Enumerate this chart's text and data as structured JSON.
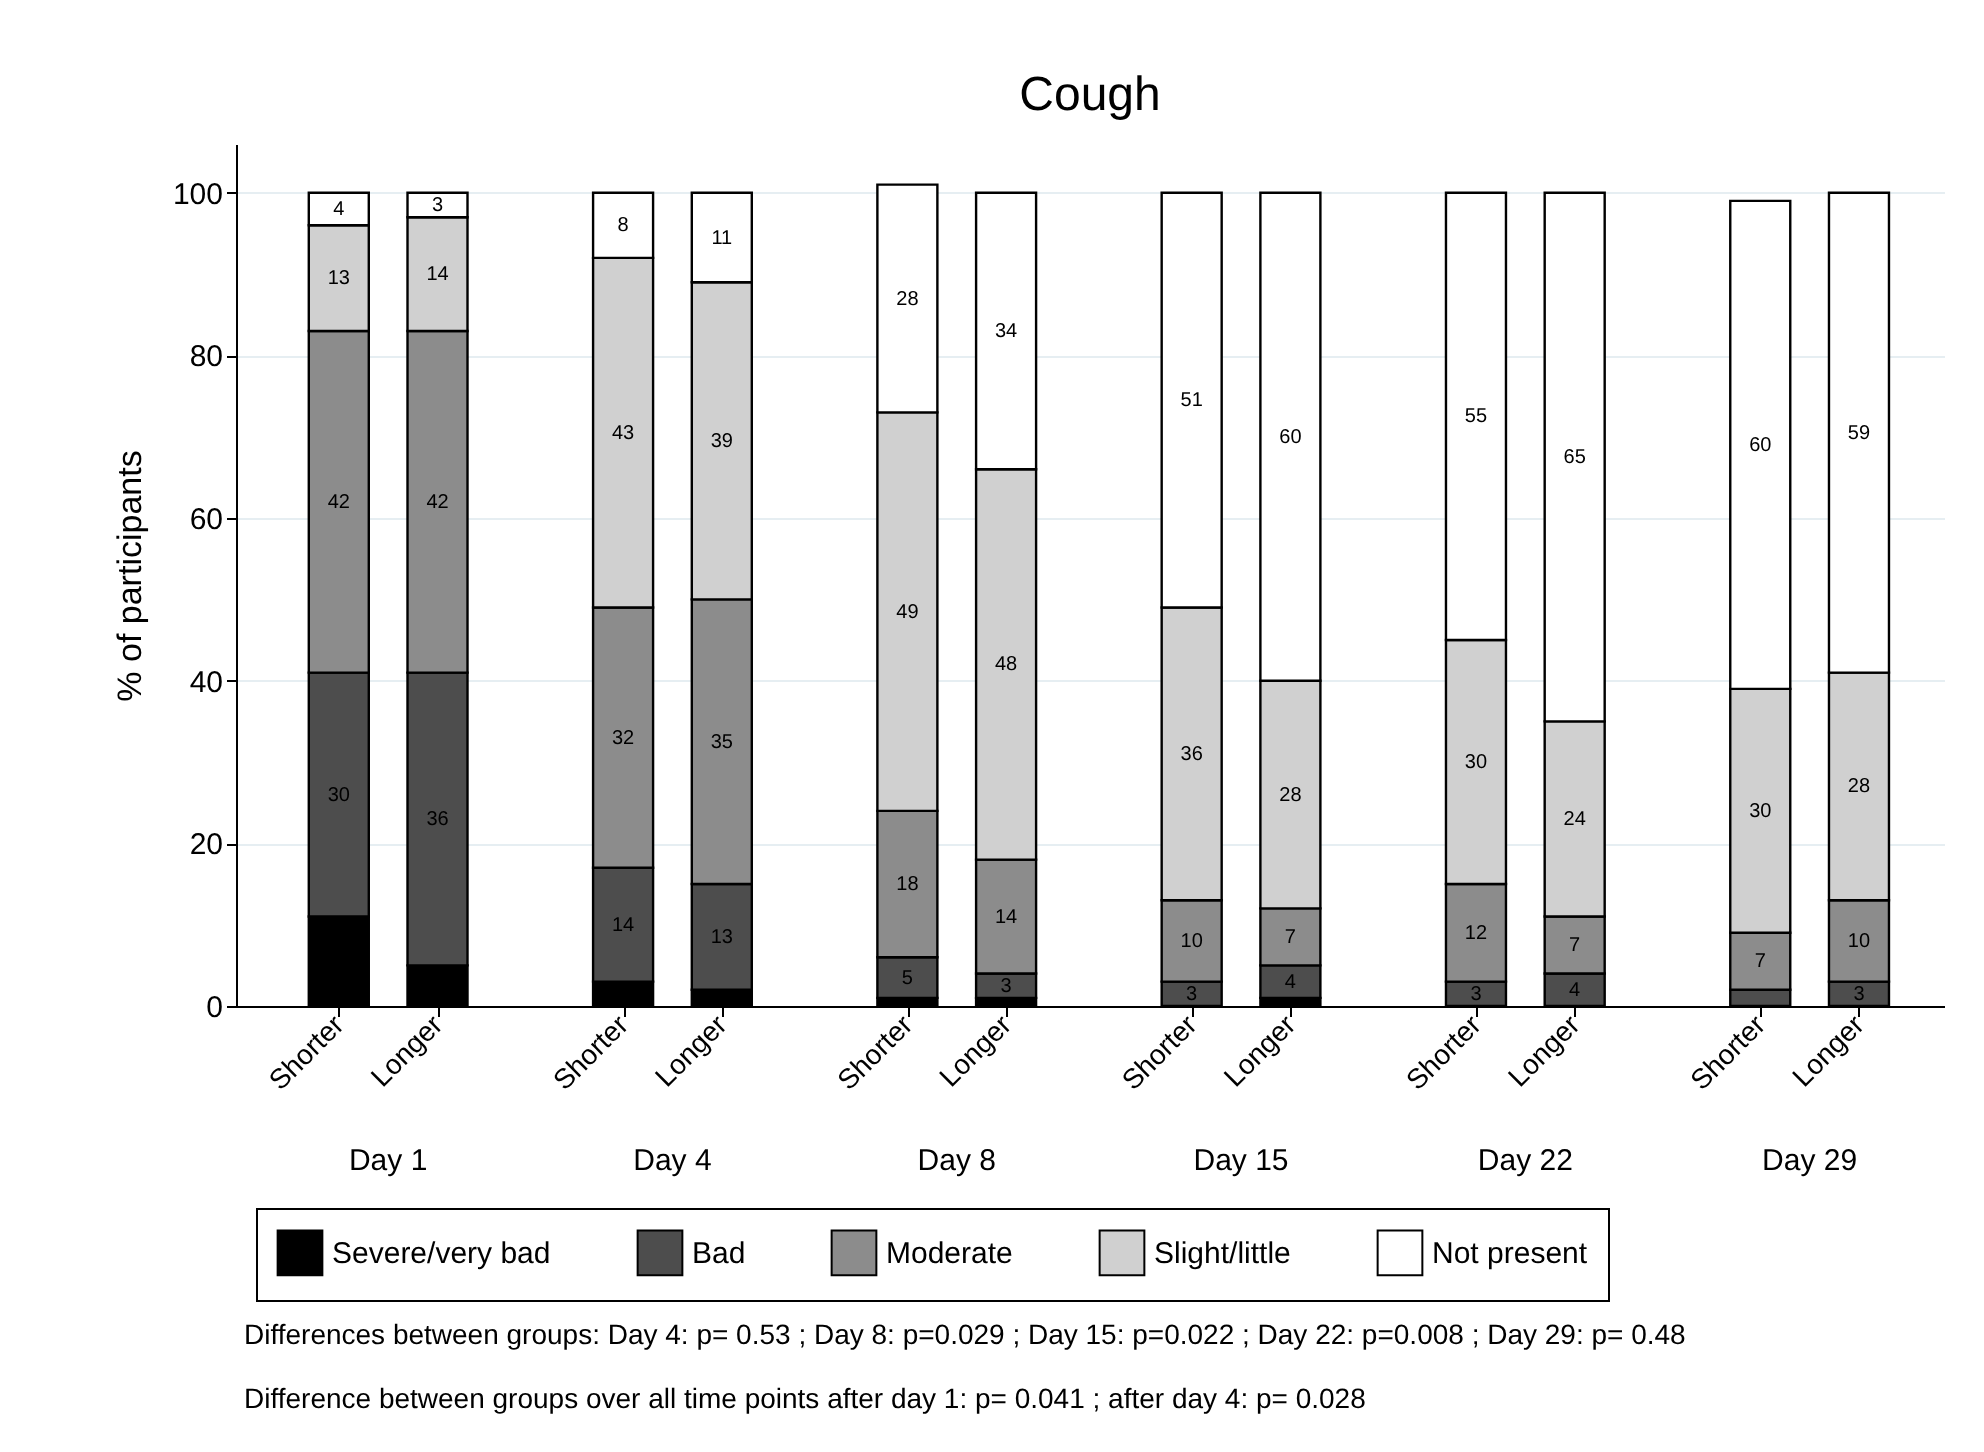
{
  "chart_data": {
    "type": "bar",
    "title": "Cough",
    "ylabel": "% of participants",
    "stacked": true,
    "categories": [
      "Shorter",
      "Longer",
      "Shorter",
      "Longer",
      "Shorter",
      "Longer",
      "Shorter",
      "Longer",
      "Shorter",
      "Longer",
      "Shorter",
      "Longer"
    ],
    "series": [
      {
        "name": "Severe/very bad",
        "color": "#000000",
        "values": [
          11,
          5,
          3,
          2,
          1,
          1,
          0,
          1,
          0,
          0,
          0,
          0
        ],
        "value_labels": [
          null,
          null,
          null,
          null,
          null,
          null,
          null,
          null,
          null,
          null,
          null,
          null
        ]
      },
      {
        "name": "Bad",
        "color": "#4d4d4d",
        "values": [
          30,
          36,
          14,
          13,
          5,
          3,
          3,
          4,
          3,
          4,
          2,
          3
        ],
        "value_labels": [
          "30",
          "36",
          "14",
          "13",
          "5",
          "3",
          "3",
          "4",
          "3",
          "4",
          null,
          "3"
        ]
      },
      {
        "name": "Moderate",
        "color": "#8c8c8c",
        "values": [
          42,
          42,
          32,
          35,
          18,
          14,
          10,
          7,
          12,
          7,
          7,
          10
        ],
        "value_labels": [
          "42",
          "42",
          "32",
          "35",
          "18",
          "14",
          "10",
          "7",
          "12",
          "7",
          "7",
          "10"
        ]
      },
      {
        "name": "Slight/little",
        "color": "#d0d0d0",
        "values": [
          13,
          14,
          43,
          39,
          49,
          48,
          36,
          28,
          30,
          24,
          30,
          28
        ],
        "value_labels": [
          "13",
          "14",
          "43",
          "39",
          "49",
          "48",
          "36",
          "28",
          "30",
          "24",
          "30",
          "28"
        ]
      },
      {
        "name": "Not present",
        "color": "#ffffff",
        "values": [
          4,
          3,
          8,
          11,
          28,
          34,
          51,
          60,
          55,
          65,
          60,
          59
        ],
        "value_labels": [
          "4",
          "3",
          "8",
          "11",
          "28",
          "34",
          "51",
          "60",
          "55",
          "65",
          "60",
          "59"
        ]
      }
    ],
    "ylim": [
      0,
      106
    ],
    "yticks": [
      0,
      20,
      40,
      60,
      80,
      100
    ],
    "grid": "y",
    "legend": "bottom",
    "annotations": [
      "Day 1",
      "Day 4",
      "Day 8",
      "Day 15",
      "Day 22",
      "Day 29",
      "Differences between groups:   Day 4: p= 0.53 ;  Day 8: p=0.029 ;  Day 15: p=0.022 ;  Day 22: p=0.008 ;  Day 29: p= 0.48",
      "Difference between groups over all time points after day 1: p= 0.041 ; after day 4: p= 0.028"
    ]
  }
}
